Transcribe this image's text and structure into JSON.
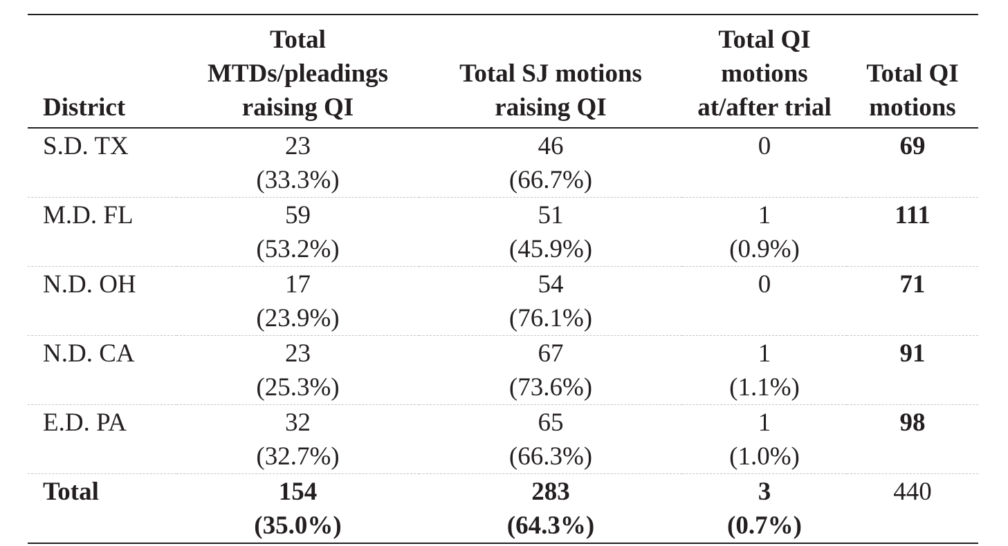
{
  "table": {
    "headers": {
      "district": "District",
      "mtd": [
        "Total",
        "MTDs/pleadings",
        "raising QI"
      ],
      "sj": [
        "Total SJ motions",
        "raising QI"
      ],
      "trial": [
        "Total QI",
        "motions",
        "at/after trial"
      ],
      "total": [
        "Total QI",
        "motions"
      ]
    },
    "rows": [
      {
        "district": "S.D. TX",
        "mtd": "23",
        "mtd_pct": "(33.3%)",
        "sj": "46",
        "sj_pct": "(66.7%)",
        "trial": "0",
        "trial_pct": "",
        "total": "69"
      },
      {
        "district": "M.D. FL",
        "mtd": "59",
        "mtd_pct": "(53.2%)",
        "sj": "51",
        "sj_pct": "(45.9%)",
        "trial": "1",
        "trial_pct": "(0.9%)",
        "total": "111"
      },
      {
        "district": "N.D. OH",
        "mtd": "17",
        "mtd_pct": "(23.9%)",
        "sj": "54",
        "sj_pct": "(76.1%)",
        "trial": "0",
        "trial_pct": "",
        "total": "71"
      },
      {
        "district": "N.D. CA",
        "mtd": "23",
        "mtd_pct": "(25.3%)",
        "sj": "67",
        "sj_pct": "(73.6%)",
        "trial": "1",
        "trial_pct": "(1.1%)",
        "total": "91"
      },
      {
        "district": "E.D. PA",
        "mtd": "32",
        "mtd_pct": "(32.7%)",
        "sj": "65",
        "sj_pct": "(66.3%)",
        "trial": "1",
        "trial_pct": "(1.0%)",
        "total": "98"
      }
    ],
    "total_row": {
      "district": "Total",
      "mtd": "154",
      "mtd_pct": "(35.0%)",
      "sj": "283",
      "sj_pct": "(64.3%)",
      "trial": "3",
      "trial_pct": "(0.7%)",
      "total": "440"
    }
  }
}
